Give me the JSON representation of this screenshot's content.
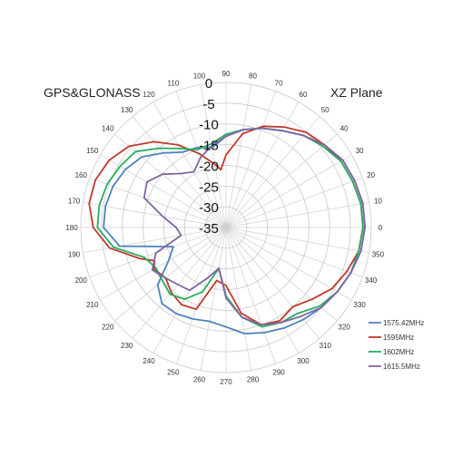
{
  "chart_data": {
    "type": "polar-line",
    "title_left": "GPS&GLONASS",
    "title_right": "XZ Plane",
    "r_axis": {
      "ticks": [
        0,
        -5,
        -10,
        -15,
        -20,
        -25,
        -30,
        -35
      ],
      "tick_labels": [
        "0",
        "-5",
        "-10",
        "-15",
        "-20",
        "-25",
        "-30",
        "-35"
      ],
      "range": [
        -35,
        0
      ]
    },
    "angle_axis": {
      "ticks": [
        0,
        10,
        20,
        30,
        40,
        50,
        60,
        70,
        80,
        90,
        100,
        110,
        120,
        130,
        140,
        150,
        160,
        170,
        180,
        190,
        200,
        210,
        220,
        230,
        240,
        250,
        260,
        270,
        280,
        290,
        300,
        310,
        320,
        330,
        340,
        350
      ],
      "tick_labels": [
        "0",
        "10",
        "20",
        "30",
        "40",
        "50",
        "60",
        "70",
        "80",
        "90",
        "100",
        "110",
        "120",
        "130",
        "140",
        "150",
        "160",
        "170",
        "180",
        "190",
        "200",
        "210",
        "220",
        "230",
        "240",
        "250",
        "260",
        "270",
        "280",
        "290",
        "300",
        "310",
        "320",
        "330",
        "340",
        "350"
      ],
      "direction": "counterclockwise",
      "zero_at": "right"
    },
    "grid": true,
    "legend_position": "bottom-right",
    "series": [
      {
        "name": "1575.42MHz",
        "color": "#4F81BD",
        "angles": [
          0,
          10,
          20,
          30,
          40,
          50,
          60,
          70,
          80,
          90,
          100,
          110,
          120,
          130,
          140,
          150,
          160,
          170,
          180,
          190,
          200,
          210,
          220,
          230,
          240,
          250,
          260,
          270,
          280,
          290,
          300,
          310,
          320,
          330,
          340,
          350,
          360
        ],
        "values": [
          -1.5,
          -1.5,
          -2,
          -2.5,
          -4,
          -6,
          -8,
          -9.5,
          -11,
          -13,
          -15.5,
          -14.5,
          -14,
          -11.5,
          -8.5,
          -7,
          -6,
          -5.5,
          -5.5,
          -9,
          -21.5,
          -19,
          -13.5,
          -11,
          -11,
          -11.5,
          -12,
          -11,
          -9,
          -8,
          -7,
          -6,
          -5,
          -4,
          -3,
          -2,
          -1.5
        ]
      },
      {
        "name": "1595MHz",
        "color": "#C0392B",
        "angles": [
          0,
          10,
          20,
          30,
          40,
          50,
          60,
          70,
          80,
          90,
          95,
          100,
          110,
          120,
          130,
          140,
          150,
          160,
          170,
          180,
          190,
          200,
          205,
          210,
          220,
          230,
          240,
          250,
          260,
          270,
          280,
          290,
          300,
          310,
          320,
          330,
          340,
          350,
          360
        ],
        "values": [
          -2,
          -2,
          -2.5,
          -3,
          -4,
          -5,
          -7,
          -9,
          -12,
          -17.5,
          -21,
          -19.5,
          -16,
          -12,
          -8,
          -4.5,
          -2.5,
          -1.5,
          -1.5,
          -3,
          -6.5,
          -13,
          -16,
          -15,
          -16,
          -14.5,
          -13.5,
          -14,
          -22,
          -21,
          -14,
          -10,
          -9,
          -10,
          -8,
          -5.5,
          -4,
          -2.5,
          -2
        ]
      },
      {
        "name": "1602MHz",
        "color": "#27AE60",
        "angles": [
          0,
          10,
          20,
          30,
          40,
          50,
          60,
          70,
          80,
          90,
          100,
          110,
          120,
          130,
          140,
          150,
          160,
          170,
          180,
          190,
          200,
          210,
          220,
          230,
          240,
          250,
          260,
          270,
          280,
          290,
          300,
          310,
          320,
          330,
          340,
          350,
          360
        ],
        "values": [
          -2,
          -2,
          -2.5,
          -3,
          -4.5,
          -6,
          -8,
          -9.5,
          -11,
          -12.5,
          -14.5,
          -15,
          -13,
          -10,
          -6.5,
          -5.5,
          -4.5,
          -4,
          -4,
          -7.5,
          -14,
          -15.5,
          -15,
          -14,
          -15,
          -18.5,
          -25,
          -18.5,
          -13,
          -9.5,
          -8.5,
          -8,
          -5.5,
          -4,
          -3,
          -2.5,
          -2
        ]
      },
      {
        "name": "1615.5MHz",
        "color": "#8064A2",
        "angles": [
          0,
          10,
          20,
          30,
          40,
          50,
          60,
          70,
          80,
          90,
          100,
          110,
          120,
          130,
          140,
          150,
          160,
          170,
          180,
          190,
          200,
          210,
          220,
          230,
          240,
          250,
          260,
          270,
          280,
          290,
          300,
          310,
          320,
          330,
          340,
          350,
          360
        ],
        "values": [
          -1.5,
          -1.5,
          -2,
          -2.5,
          -4,
          -6,
          -8,
          -9.5,
          -11,
          -13,
          -15,
          -17,
          -19.5,
          -18,
          -15,
          -13,
          -14,
          -19.5,
          -23,
          -24,
          -17,
          -14.5,
          -16,
          -17,
          -17.5,
          -22,
          -25,
          -18,
          -13,
          -10,
          -8.5,
          -7,
          -5,
          -4,
          -3,
          -2,
          -1.5
        ]
      }
    ]
  }
}
